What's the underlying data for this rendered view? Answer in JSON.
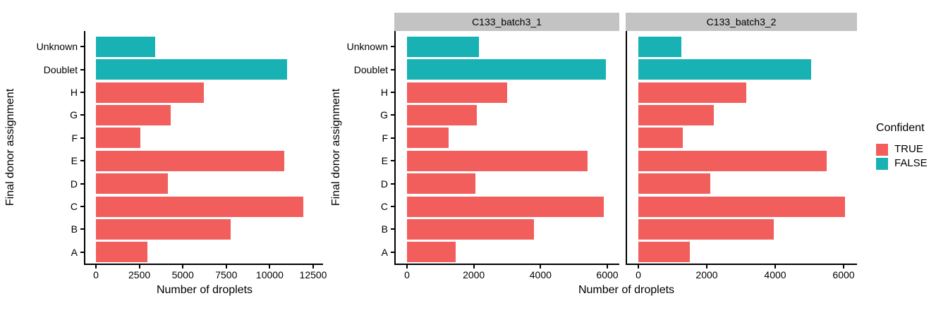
{
  "figure": {
    "x_axis_title": "Number of droplets",
    "y_axis_title": "Final donor assignment",
    "legend": {
      "title": "Confident",
      "items": [
        {
          "label": "TRUE",
          "color": "#F25E5C"
        },
        {
          "label": "FALSE",
          "color": "#18B2B5"
        }
      ]
    },
    "colors": {
      "confident_true": "#F25E5C",
      "confident_false": "#18B2B5",
      "strip_bg": "#C3C3C3",
      "axis_line": "#000000",
      "background": "#FFFFFF"
    }
  },
  "chart_data": {
    "type": "bar",
    "orientation": "horizontal",
    "title": "",
    "xlabel": "Number of droplets",
    "ylabel": "Final donor assignment",
    "legend_title": "Confident",
    "legend_entries": [
      "TRUE",
      "FALSE"
    ],
    "legend_position": "right",
    "grid": false,
    "categories_top_to_bottom": [
      "Unknown",
      "Doublet",
      "H",
      "G",
      "F",
      "E",
      "D",
      "C",
      "B",
      "A"
    ],
    "confident_by_category": [
      "FALSE",
      "FALSE",
      "TRUE",
      "TRUE",
      "TRUE",
      "TRUE",
      "TRUE",
      "TRUE",
      "TRUE",
      "TRUE"
    ],
    "panels": [
      {
        "name": "combined",
        "strip_label": null,
        "x_ticks": [
          0,
          2500,
          5000,
          7500,
          10000,
          12500
        ],
        "xlim": [
          0,
          12500
        ],
        "values": [
          3400,
          11000,
          6200,
          4300,
          2550,
          10850,
          4150,
          11950,
          7750,
          2950
        ]
      },
      {
        "name": "C133_batch3_1",
        "strip_label": "C133_batch3_1",
        "x_ticks": [
          0,
          2000,
          4000,
          6000
        ],
        "xlim": [
          0,
          6000
        ],
        "values": [
          2150,
          5950,
          3000,
          2100,
          1250,
          5400,
          2050,
          5900,
          3800,
          1450
        ]
      },
      {
        "name": "C133_batch3_2",
        "strip_label": "C133_batch3_2",
        "x_ticks": [
          0,
          2000,
          4000,
          6000
        ],
        "xlim": [
          0,
          6000
        ],
        "values": [
          1250,
          5050,
          3150,
          2200,
          1300,
          5500,
          2100,
          6050,
          3950,
          1500
        ]
      }
    ]
  }
}
